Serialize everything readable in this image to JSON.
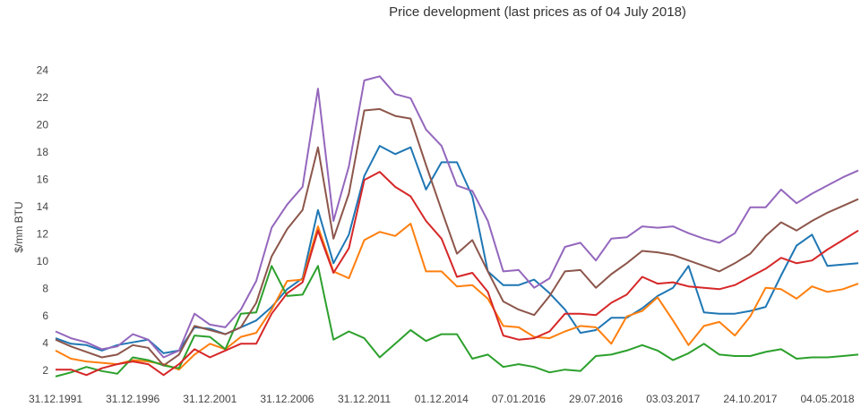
{
  "chart_data": {
    "type": "line",
    "title": "Price development (last prices as of 04 July 2018)",
    "y_label": "$/mm BTU",
    "categories": [
      "31.12.1991",
      null,
      null,
      null,
      null,
      "31.12.1996",
      null,
      null,
      null,
      null,
      "31.12.2001",
      null,
      null,
      null,
      null,
      "31.12.2006",
      null,
      null,
      null,
      null,
      "31.12.2011",
      null,
      null,
      null,
      null,
      "01.12.2014",
      null,
      null,
      null,
      null,
      "07.01.2016",
      null,
      null,
      null,
      null,
      "29.07.2016",
      null,
      null,
      null,
      null,
      "03.03.2017",
      null,
      null,
      null,
      null,
      "24.10.2017",
      null,
      null,
      null,
      null,
      "04.05.2018",
      null,
      null
    ],
    "series": [
      {
        "color": "#1f77b4",
        "values": [
          4.4,
          4.0,
          3.9,
          3.5,
          3.9,
          4.1,
          4.3,
          3.3,
          3.5,
          5.2,
          5.1,
          4.7,
          5.2,
          5.7,
          6.7,
          8.0,
          8.8,
          13.8,
          9.9,
          12.0,
          16.3,
          18.5,
          17.9,
          18.4,
          15.3,
          17.3,
          17.3,
          14.8,
          9.3,
          8.3,
          8.3,
          8.7,
          7.7,
          6.5,
          4.8,
          5.0,
          5.9,
          5.9,
          6.6,
          7.5,
          8.1,
          9.7,
          6.3,
          6.2,
          6.2,
          6.4,
          6.7,
          9.0,
          11.2,
          12.0,
          9.7,
          9.8,
          9.9
        ]
      },
      {
        "color": "#ff7f0e",
        "values": [
          3.5,
          2.9,
          2.7,
          2.6,
          2.5,
          2.8,
          2.7,
          2.5,
          2.1,
          3.2,
          4.0,
          3.6,
          4.5,
          4.8,
          6.5,
          8.6,
          8.7,
          12.6,
          9.3,
          8.8,
          11.6,
          12.2,
          11.9,
          12.8,
          9.3,
          9.3,
          8.2,
          8.3,
          7.3,
          5.3,
          5.2,
          4.5,
          4.4,
          4.9,
          5.3,
          5.2,
          4.0,
          6.0,
          6.4,
          7.4,
          5.7,
          3.9,
          5.3,
          5.6,
          4.6,
          6.0,
          8.1,
          8.0,
          7.3,
          8.2,
          7.8,
          8.0,
          8.4
        ]
      },
      {
        "color": "#2ca02c",
        "values": [
          1.6,
          1.9,
          2.3,
          2.0,
          1.8,
          3.0,
          2.8,
          2.4,
          2.2,
          4.6,
          4.5,
          3.6,
          6.2,
          6.3,
          9.7,
          7.5,
          7.6,
          9.7,
          4.3,
          4.9,
          4.4,
          3.0,
          4.0,
          5.0,
          4.2,
          4.7,
          4.7,
          2.9,
          3.2,
          2.3,
          2.5,
          2.3,
          1.9,
          2.1,
          2.0,
          3.1,
          3.2,
          3.5,
          3.9,
          3.5,
          2.8,
          3.3,
          4.0,
          3.2,
          3.1,
          3.1,
          3.4,
          3.6,
          2.9,
          3.0,
          3.0,
          3.1,
          3.2
        ]
      },
      {
        "color": "#d62728",
        "values": [
          2.1,
          2.1,
          1.7,
          2.2,
          2.5,
          2.7,
          2.5,
          1.7,
          2.5,
          3.6,
          3.0,
          3.5,
          4.0,
          4.0,
          6.2,
          7.7,
          8.5,
          12.3,
          9.2,
          11.0,
          16.0,
          16.6,
          15.5,
          14.8,
          13.0,
          11.7,
          8.9,
          9.2,
          7.8,
          4.6,
          4.3,
          4.4,
          4.9,
          6.2,
          6.2,
          6.1,
          7.0,
          7.6,
          8.9,
          8.4,
          8.5,
          8.2,
          8.1,
          8.0,
          8.3,
          8.9,
          9.5,
          10.3,
          9.9,
          10.1,
          10.9,
          11.6,
          12.3
        ]
      },
      {
        "color": "#9467bd",
        "values": [
          4.9,
          4.4,
          4.1,
          3.6,
          3.8,
          4.7,
          4.3,
          3.0,
          3.5,
          6.2,
          5.4,
          5.2,
          6.5,
          8.6,
          12.5,
          14.2,
          15.5,
          22.7,
          13.0,
          17.0,
          23.3,
          23.6,
          22.3,
          22.0,
          19.7,
          18.5,
          15.6,
          15.2,
          13.0,
          9.3,
          9.4,
          8.1,
          8.8,
          11.1,
          11.4,
          10.1,
          11.7,
          11.8,
          12.6,
          12.5,
          12.6,
          12.1,
          11.7,
          11.4,
          12.1,
          14.0,
          14.0,
          15.3,
          14.3,
          15.0,
          15.6,
          16.2,
          16.7
        ]
      },
      {
        "color": "#8c564b",
        "values": [
          4.3,
          3.8,
          3.4,
          3.0,
          3.2,
          3.9,
          3.7,
          2.4,
          3.2,
          5.3,
          5.0,
          4.7,
          5.2,
          7.0,
          10.4,
          12.4,
          13.8,
          18.4,
          11.7,
          15.0,
          21.1,
          21.2,
          20.7,
          20.5,
          17.1,
          13.8,
          10.6,
          11.6,
          9.3,
          7.1,
          6.5,
          6.1,
          7.5,
          9.3,
          9.4,
          8.1,
          9.1,
          9.9,
          10.8,
          10.7,
          10.5,
          10.1,
          9.7,
          9.3,
          9.9,
          10.6,
          11.9,
          12.9,
          12.3,
          13.0,
          13.6,
          14.1,
          14.6
        ]
      }
    ],
    "ylim": [
      1,
      25
    ],
    "yticks": [
      2,
      4,
      6,
      8,
      10,
      12,
      14,
      16,
      18,
      20,
      22,
      24
    ],
    "grid": false
  }
}
